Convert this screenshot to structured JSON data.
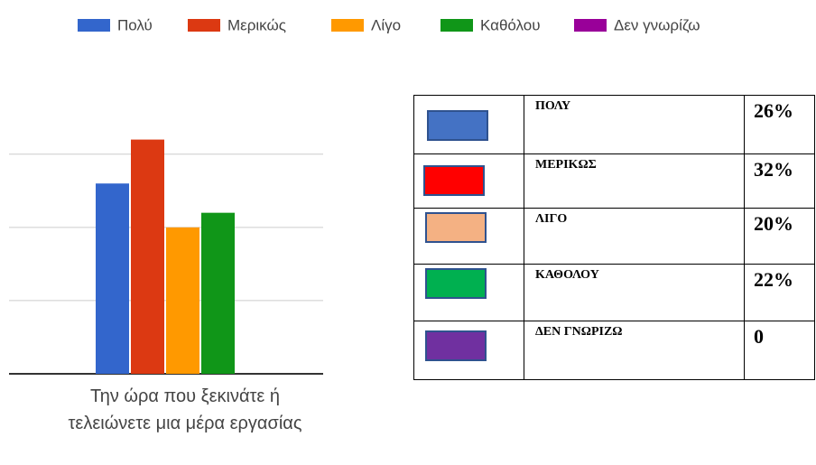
{
  "chart_data": {
    "type": "bar",
    "categories": [
      "Την ώρα που ξεκινάτε ή τελειώνετε μια μέρα εργασίας"
    ],
    "series": [
      {
        "name": "Πολύ",
        "color": "#3366cc",
        "values": [
          26
        ]
      },
      {
        "name": "Μερικώς",
        "color": "#dc3912",
        "values": [
          32
        ]
      },
      {
        "name": "Λίγο",
        "color": "#ff9900",
        "values": [
          20
        ]
      },
      {
        "name": "Καθόλου",
        "color": "#109618",
        "values": [
          22
        ]
      },
      {
        "name": "Δεν γνωρίζω",
        "color": "#990099",
        "values": [
          0
        ]
      }
    ],
    "ylim": [
      0,
      37.5
    ],
    "yticks": [
      0,
      10,
      20,
      30
    ],
    "grid": true,
    "legend": "top"
  },
  "table": {
    "rows": [
      {
        "label": "ΠΟΛΥ",
        "value": "26%",
        "color": "#4472c4"
      },
      {
        "label": "ΜΕΡΙΚΩΣ",
        "value": "32%",
        "color": "#ff0000"
      },
      {
        "label": "ΛΙΓΟ",
        "value": "20%",
        "color": "#f4b183"
      },
      {
        "label": "ΚΑΘΟΛΟΥ",
        "value": "22%",
        "color": "#00b050"
      },
      {
        "label": "ΔΕΝ ΓΝΩΡΙΖΩ",
        "value": "0",
        "color": "#7030a0"
      }
    ]
  }
}
